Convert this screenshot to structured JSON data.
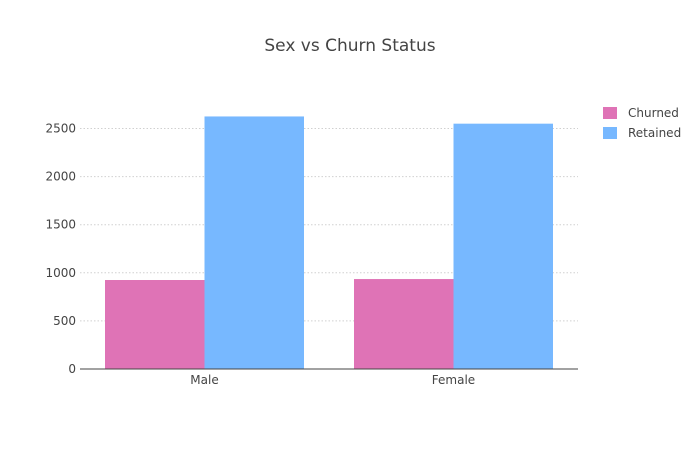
{
  "chart_data": {
    "type": "bar",
    "title": "Sex vs Churn Status",
    "xlabel": "",
    "ylabel": "",
    "categories": [
      "Male",
      "Female"
    ],
    "series": [
      {
        "name": "Churned",
        "values": [
          925,
          935
        ],
        "color": "#df73b6"
      },
      {
        "name": "Retained",
        "values": [
          2625,
          2550
        ],
        "color": "#77b8ff"
      }
    ],
    "ylim": [
      0,
      2900
    ],
    "yticks": [
      0,
      500,
      1000,
      1500,
      2000,
      2500
    ],
    "ytick_labels": [
      "0",
      "500",
      "1000",
      "1500",
      "2000",
      "2500"
    ],
    "grid": true,
    "legend_position": "top-right"
  }
}
